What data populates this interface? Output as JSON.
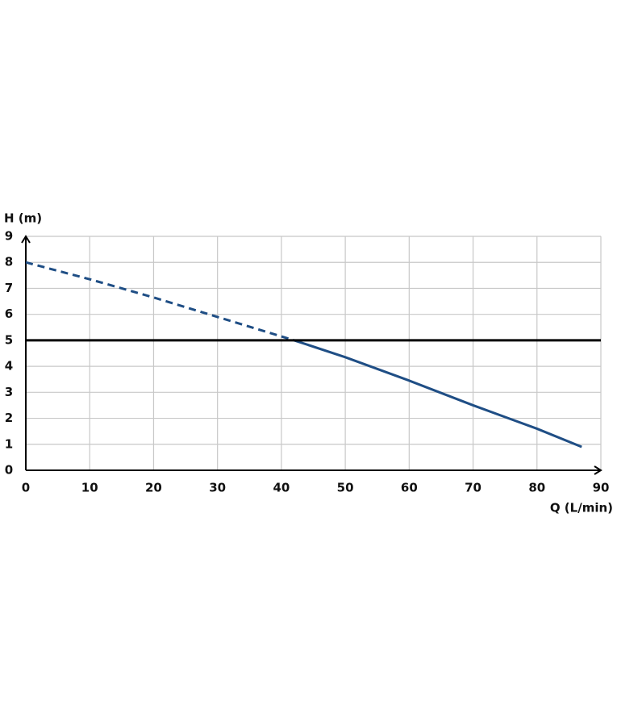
{
  "chart_data": {
    "type": "line",
    "y_label": "H (m)",
    "x_label": "Q (L/min)",
    "xlim": [
      0,
      90
    ],
    "ylim": [
      0,
      9
    ],
    "xticks": [
      0,
      10,
      20,
      30,
      40,
      50,
      60,
      70,
      80,
      90
    ],
    "yticks": [
      0,
      1,
      2,
      3,
      4,
      5,
      6,
      7,
      8,
      9
    ],
    "grid": true,
    "series": [
      {
        "color": "#1f4e85",
        "style": "dashed",
        "x": [
          0,
          10,
          20,
          30,
          42
        ],
        "y": [
          8,
          7.35,
          6.65,
          5.9,
          5
        ]
      },
      {
        "color": "#1f4e85",
        "style": "solid",
        "x": [
          42,
          50,
          60,
          70,
          80,
          87
        ],
        "y": [
          5,
          4.35,
          3.45,
          2.5,
          1.6,
          0.9
        ]
      },
      {
        "color": "#000000",
        "style": "solid",
        "x": [
          0,
          90
        ],
        "y": [
          5,
          5
        ]
      }
    ]
  }
}
